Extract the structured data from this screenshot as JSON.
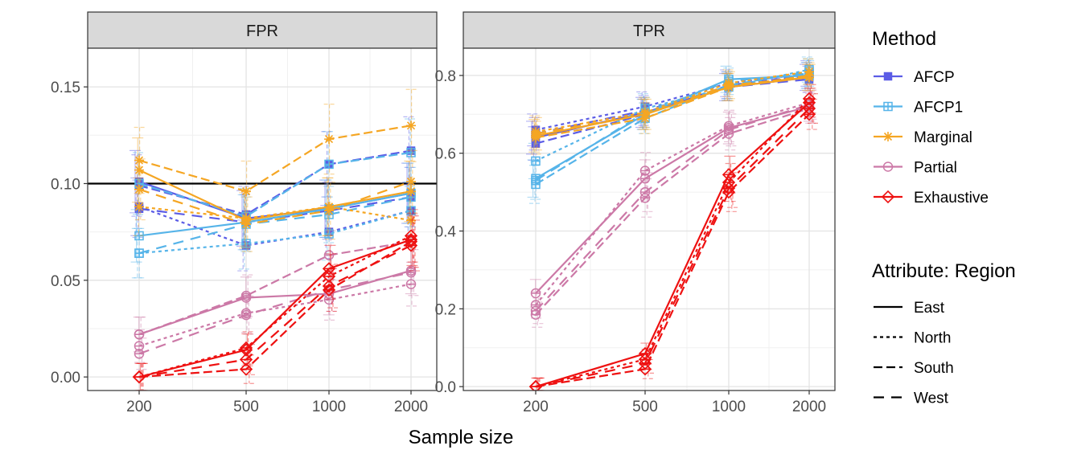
{
  "chart_data": {
    "type": "line",
    "xlabel": "Sample size",
    "x": [
      200,
      500,
      1000,
      2000
    ],
    "x_tick_labels": [
      "200",
      "500",
      "1000",
      "2000"
    ],
    "colors": {
      "AFCP": "#5b5ce6",
      "AFCP1": "#56b4e9",
      "Marginal": "#f5a623",
      "Partial": "#cc79a7",
      "Exhaustive": "#ee1111"
    },
    "legend": {
      "method_title": "Method",
      "methods": [
        "AFCP",
        "AFCP1",
        "Marginal",
        "Partial",
        "Exhaustive"
      ],
      "attribute_title": "Attribute: Region",
      "regions": [
        "East",
        "North",
        "South",
        "West"
      ]
    },
    "panels": [
      {
        "name": "FPR",
        "strip": "FPR",
        "ylim": [
          -0.007,
          0.17
        ],
        "yticks": [
          0.0,
          0.05,
          0.1,
          0.15
        ],
        "ytick_labels": [
          "0.00",
          "0.05",
          "0.10",
          "0.15"
        ],
        "hline": 0.1,
        "series": [
          {
            "method": "AFCP",
            "region": "East",
            "values": [
              0.101,
              0.082,
              0.087,
              0.095
            ]
          },
          {
            "method": "AFCP",
            "region": "North",
            "values": [
              0.088,
              0.068,
              0.075,
              0.086
            ]
          },
          {
            "method": "AFCP",
            "region": "South",
            "values": [
              0.099,
              0.084,
              0.11,
              0.117
            ]
          },
          {
            "method": "AFCP",
            "region": "West",
            "values": [
              0.087,
              0.08,
              0.086,
              0.093
            ]
          },
          {
            "method": "AFCP1",
            "region": "East",
            "values": [
              0.073,
              0.08,
              0.087,
              0.095
            ]
          },
          {
            "method": "AFCP1",
            "region": "North",
            "values": [
              0.064,
              0.069,
              0.074,
              0.086
            ]
          },
          {
            "method": "AFCP1",
            "region": "South",
            "values": [
              0.1,
              0.083,
              0.11,
              0.116
            ]
          },
          {
            "method": "AFCP1",
            "region": "West",
            "values": [
              0.064,
              0.079,
              0.084,
              0.093
            ]
          },
          {
            "method": "Marginal",
            "region": "East",
            "values": [
              0.107,
              0.081,
              0.088,
              0.096
            ]
          },
          {
            "method": "Marginal",
            "region": "North",
            "values": [
              0.088,
              0.082,
              0.088,
              0.081
            ]
          },
          {
            "method": "Marginal",
            "region": "South",
            "values": [
              0.112,
              0.096,
              0.123,
              0.13
            ]
          },
          {
            "method": "Marginal",
            "region": "West",
            "values": [
              0.097,
              0.079,
              0.086,
              0.101
            ]
          },
          {
            "method": "Partial",
            "region": "East",
            "values": [
              0.022,
              0.041,
              0.043,
              0.055
            ]
          },
          {
            "method": "Partial",
            "region": "North",
            "values": [
              0.016,
              0.033,
              0.04,
              0.048
            ]
          },
          {
            "method": "Partial",
            "region": "South",
            "values": [
              0.022,
              0.042,
              0.063,
              0.07
            ]
          },
          {
            "method": "Partial",
            "region": "West",
            "values": [
              0.012,
              0.032,
              0.045,
              0.054
            ]
          },
          {
            "method": "Exhaustive",
            "region": "East",
            "values": [
              0.0,
              0.014,
              0.056,
              0.071
            ]
          },
          {
            "method": "Exhaustive",
            "region": "North",
            "values": [
              0.0,
              0.015,
              0.052,
              0.073
            ]
          },
          {
            "method": "Exhaustive",
            "region": "South",
            "values": [
              0.0,
              0.004,
              0.045,
              0.07
            ]
          },
          {
            "method": "Exhaustive",
            "region": "West",
            "values": [
              0.0,
              0.009,
              0.047,
              0.068
            ]
          }
        ]
      },
      {
        "name": "TPR",
        "strip": "TPR",
        "ylim": [
          -0.01,
          0.87
        ],
        "yticks": [
          0.0,
          0.2,
          0.4,
          0.6,
          0.8
        ],
        "ytick_labels": [
          "0.0",
          "0.2",
          "0.4",
          "0.6",
          "0.8"
        ],
        "series": [
          {
            "method": "AFCP",
            "region": "East",
            "values": [
              0.64,
              0.705,
              0.77,
              0.795
            ]
          },
          {
            "method": "AFCP",
            "region": "North",
            "values": [
              0.66,
              0.72,
              0.78,
              0.805
            ]
          },
          {
            "method": "AFCP",
            "region": "South",
            "values": [
              0.625,
              0.7,
              0.775,
              0.8
            ]
          },
          {
            "method": "AFCP",
            "region": "West",
            "values": [
              0.65,
              0.71,
              0.77,
              0.79
            ]
          },
          {
            "method": "AFCP1",
            "region": "East",
            "values": [
              0.535,
              0.7,
              0.79,
              0.8
            ]
          },
          {
            "method": "AFCP1",
            "region": "North",
            "values": [
              0.58,
              0.715,
              0.77,
              0.815
            ]
          },
          {
            "method": "AFCP1",
            "region": "South",
            "values": [
              0.52,
              0.69,
              0.775,
              0.81
            ]
          },
          {
            "method": "AFCP1",
            "region": "West",
            "values": [
              0.53,
              0.705,
              0.785,
              0.805
            ]
          },
          {
            "method": "Marginal",
            "region": "East",
            "values": [
              0.645,
              0.7,
              0.77,
              0.795
            ]
          },
          {
            "method": "Marginal",
            "region": "North",
            "values": [
              0.655,
              0.705,
              0.78,
              0.81
            ]
          },
          {
            "method": "Marginal",
            "region": "South",
            "values": [
              0.64,
              0.69,
              0.77,
              0.8
            ]
          },
          {
            "method": "Marginal",
            "region": "West",
            "values": [
              0.65,
              0.7,
              0.775,
              0.795
            ]
          },
          {
            "method": "Partial",
            "region": "East",
            "values": [
              0.24,
              0.535,
              0.665,
              0.72
            ]
          },
          {
            "method": "Partial",
            "region": "North",
            "values": [
              0.21,
              0.555,
              0.67,
              0.73
            ]
          },
          {
            "method": "Partial",
            "region": "South",
            "values": [
              0.185,
              0.485,
              0.65,
              0.715
            ]
          },
          {
            "method": "Partial",
            "region": "West",
            "values": [
              0.195,
              0.5,
              0.66,
              0.725
            ]
          },
          {
            "method": "Exhaustive",
            "region": "East",
            "values": [
              0.0,
              0.085,
              0.545,
              0.73
            ]
          },
          {
            "method": "Exhaustive",
            "region": "North",
            "values": [
              0.0,
              0.07,
              0.525,
              0.74
            ]
          },
          {
            "method": "Exhaustive",
            "region": "South",
            "values": [
              0.0,
              0.045,
              0.5,
              0.7
            ]
          },
          {
            "method": "Exhaustive",
            "region": "West",
            "values": [
              0.0,
              0.06,
              0.51,
              0.715
            ]
          }
        ]
      }
    ]
  }
}
